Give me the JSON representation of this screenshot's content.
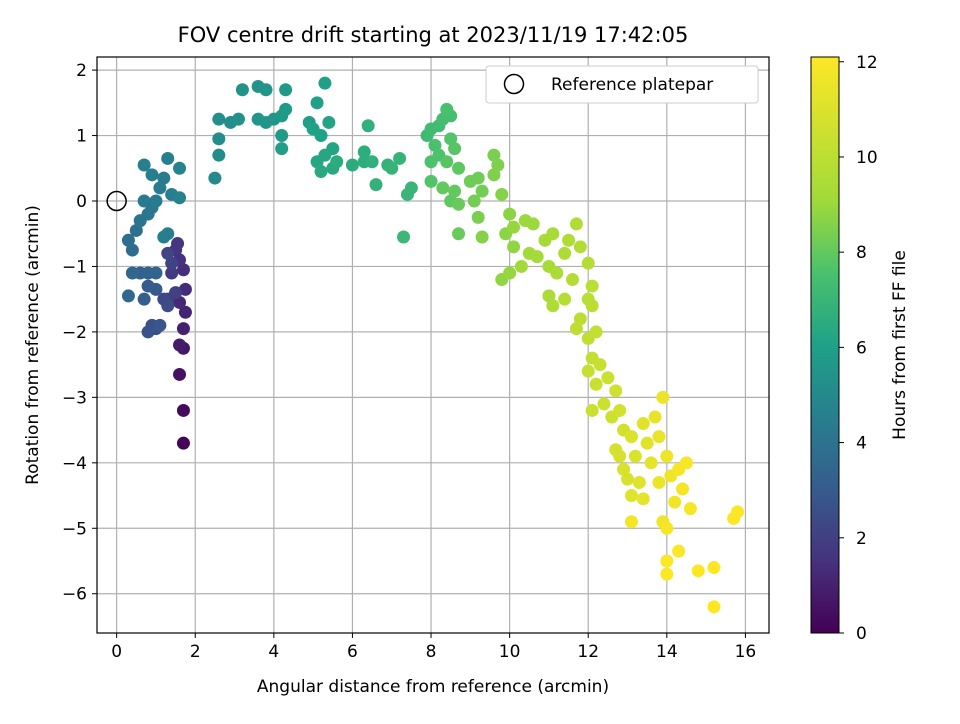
{
  "chart_data": {
    "type": "scatter",
    "title": "FOV centre drift starting at 2023/11/19 17:42:05",
    "xlabel": "Angular distance from reference (arcmin)",
    "ylabel": "Rotation from reference (arcmin)",
    "xlim": [
      -0.5,
      16.6
    ],
    "ylim": [
      -6.6,
      2.2
    ],
    "x_ticks": [
      "0",
      "2",
      "4",
      "6",
      "8",
      "10",
      "12",
      "14",
      "16"
    ],
    "y_ticks": [
      "2",
      "1",
      "0",
      "−1",
      "−2",
      "−3",
      "−4",
      "−5",
      "−6"
    ],
    "grid": true,
    "legend": {
      "position": "top-right",
      "entries": [
        "Reference platepar"
      ]
    },
    "reference_point": {
      "x": 0,
      "y": 0,
      "label": "Reference platepar"
    },
    "colorbar": {
      "label": "Hours from first FF file",
      "range": [
        0,
        12.1
      ],
      "ticks": [
        "0",
        "2",
        "4",
        "6",
        "8",
        "10",
        "12"
      ],
      "colormap": "viridis"
    },
    "series": [
      {
        "points": [
          [
            1.7,
            -3.7,
            0.1
          ],
          [
            1.7,
            -3.2,
            0.3
          ],
          [
            1.6,
            -2.65,
            0.5
          ],
          [
            1.7,
            -2.25,
            0.7
          ],
          [
            1.6,
            -2.2,
            0.8
          ],
          [
            1.7,
            -1.95,
            1.0
          ],
          [
            1.75,
            -1.7,
            1.1
          ],
          [
            1.6,
            -1.55,
            1.2
          ],
          [
            1.75,
            -1.35,
            1.3
          ],
          [
            1.7,
            -1.05,
            1.4
          ],
          [
            1.6,
            -0.9,
            1.5
          ],
          [
            1.5,
            -0.75,
            1.6
          ],
          [
            1.55,
            -0.65,
            1.7
          ],
          [
            1.4,
            -1.1,
            1.8
          ],
          [
            1.3,
            -1.5,
            1.9
          ],
          [
            1.5,
            -1.4,
            2.0
          ],
          [
            1.4,
            -0.95,
            2.1
          ],
          [
            1.3,
            -0.8,
            2.2
          ],
          [
            1.2,
            -1.5,
            2.3
          ],
          [
            1.3,
            -1.6,
            2.4
          ],
          [
            1.0,
            -1.95,
            2.5
          ],
          [
            0.9,
            -1.9,
            2.6
          ],
          [
            0.8,
            -2.0,
            2.7
          ],
          [
            1.1,
            -1.9,
            2.8
          ],
          [
            1.0,
            -1.35,
            2.9
          ],
          [
            0.8,
            -1.3,
            3.0
          ],
          [
            0.7,
            -1.5,
            3.1
          ],
          [
            0.6,
            -1.1,
            3.2
          ],
          [
            0.8,
            -1.1,
            3.3
          ],
          [
            1.0,
            -1.1,
            3.4
          ],
          [
            0.4,
            -1.1,
            3.5
          ],
          [
            0.3,
            -1.45,
            3.6
          ],
          [
            0.4,
            -0.75,
            3.7
          ],
          [
            0.3,
            -0.6,
            3.8
          ],
          [
            0.5,
            -0.45,
            3.9
          ],
          [
            0.6,
            -0.3,
            4.0
          ],
          [
            0.8,
            -0.2,
            4.1
          ],
          [
            0.9,
            -0.1,
            4.2
          ],
          [
            0.7,
            0.0,
            4.3
          ],
          [
            1.0,
            0.0,
            4.3
          ],
          [
            1.1,
            0.2,
            4.4
          ],
          [
            1.2,
            0.35,
            4.4
          ],
          [
            1.4,
            0.1,
            4.5
          ],
          [
            0.9,
            0.4,
            4.5
          ],
          [
            1.3,
            0.65,
            4.6
          ],
          [
            0.7,
            0.55,
            4.6
          ],
          [
            1.6,
            0.5,
            4.7
          ],
          [
            1.6,
            0.05,
            4.7
          ],
          [
            1.2,
            -0.55,
            4.5
          ],
          [
            1.3,
            -0.5,
            4.5
          ],
          [
            2.5,
            0.35,
            5.0
          ],
          [
            2.6,
            0.7,
            5.1
          ],
          [
            2.6,
            0.95,
            5.1
          ],
          [
            2.6,
            1.25,
            5.2
          ],
          [
            2.9,
            1.2,
            5.2
          ],
          [
            3.1,
            1.25,
            5.3
          ],
          [
            3.2,
            1.7,
            5.4
          ],
          [
            3.6,
            1.75,
            5.4
          ],
          [
            3.8,
            1.7,
            5.5
          ],
          [
            3.6,
            1.25,
            5.5
          ],
          [
            3.8,
            1.2,
            5.6
          ],
          [
            4.0,
            1.25,
            5.6
          ],
          [
            4.2,
            1.3,
            5.7
          ],
          [
            4.3,
            1.7,
            5.7
          ],
          [
            4.3,
            1.4,
            5.8
          ],
          [
            4.2,
            1.0,
            5.8
          ],
          [
            4.2,
            0.8,
            5.9
          ],
          [
            4.9,
            1.2,
            5.9
          ],
          [
            5.1,
            1.5,
            6.0
          ],
          [
            5.3,
            1.8,
            6.0
          ],
          [
            5.0,
            1.1,
            6.1
          ],
          [
            5.2,
            1.0,
            6.1
          ],
          [
            5.4,
            1.2,
            6.2
          ],
          [
            5.5,
            0.8,
            6.2
          ],
          [
            5.3,
            0.7,
            6.3
          ],
          [
            5.1,
            0.6,
            6.3
          ],
          [
            5.2,
            0.45,
            6.4
          ],
          [
            5.5,
            0.5,
            6.4
          ],
          [
            5.6,
            0.6,
            6.5
          ],
          [
            6.0,
            0.55,
            6.5
          ],
          [
            6.3,
            0.6,
            6.6
          ],
          [
            6.3,
            0.75,
            6.6
          ],
          [
            6.4,
            1.15,
            6.7
          ],
          [
            6.5,
            0.6,
            6.7
          ],
          [
            6.6,
            0.25,
            6.8
          ],
          [
            6.9,
            0.55,
            6.8
          ],
          [
            7.0,
            0.5,
            6.9
          ],
          [
            7.2,
            0.65,
            6.9
          ],
          [
            7.4,
            0.1,
            7.0
          ],
          [
            7.5,
            0.2,
            7.0
          ],
          [
            7.3,
            -0.55,
            7.1
          ],
          [
            7.9,
            1.0,
            7.2
          ],
          [
            8.0,
            1.1,
            7.3
          ],
          [
            8.2,
            1.15,
            7.3
          ],
          [
            8.3,
            1.25,
            7.4
          ],
          [
            8.5,
            1.3,
            7.4
          ],
          [
            8.4,
            1.4,
            7.5
          ],
          [
            8.1,
            0.85,
            7.5
          ],
          [
            8.0,
            0.6,
            7.6
          ],
          [
            8.2,
            0.7,
            7.6
          ],
          [
            8.0,
            0.3,
            7.7
          ],
          [
            8.5,
            0.95,
            7.7
          ],
          [
            8.6,
            0.8,
            7.8
          ],
          [
            8.4,
            0.6,
            7.8
          ],
          [
            8.7,
            0.5,
            7.9
          ],
          [
            8.5,
            0.0,
            7.9
          ],
          [
            8.6,
            0.15,
            8.0
          ],
          [
            8.3,
            0.2,
            8.0
          ],
          [
            8.7,
            -0.05,
            8.1
          ],
          [
            8.7,
            -0.5,
            8.1
          ],
          [
            9.0,
            0.3,
            8.2
          ],
          [
            9.2,
            0.35,
            8.2
          ],
          [
            9.1,
            0.0,
            8.3
          ],
          [
            9.3,
            0.15,
            8.3
          ],
          [
            9.2,
            -0.25,
            8.4
          ],
          [
            9.6,
            0.7,
            8.4
          ],
          [
            9.7,
            0.55,
            8.5
          ],
          [
            9.6,
            0.4,
            8.5
          ],
          [
            9.3,
            -0.55,
            8.6
          ],
          [
            9.8,
            0.1,
            8.6
          ],
          [
            10.0,
            -0.2,
            8.7
          ],
          [
            9.9,
            -0.5,
            8.7
          ],
          [
            10.1,
            -0.7,
            8.8
          ],
          [
            9.8,
            -1.2,
            8.8
          ],
          [
            10.0,
            -1.1,
            8.9
          ],
          [
            10.1,
            -0.4,
            8.9
          ],
          [
            10.4,
            -0.3,
            9.0
          ],
          [
            10.6,
            -0.35,
            9.0
          ],
          [
            10.5,
            -0.8,
            9.1
          ],
          [
            10.3,
            -1.0,
            9.1
          ],
          [
            10.7,
            -0.85,
            9.2
          ],
          [
            10.9,
            -0.6,
            9.2
          ],
          [
            11.1,
            -0.5,
            9.3
          ],
          [
            11.0,
            -1.0,
            9.3
          ],
          [
            11.2,
            -1.1,
            9.4
          ],
          [
            11.0,
            -1.45,
            9.4
          ],
          [
            11.1,
            -1.6,
            9.5
          ],
          [
            11.4,
            -0.8,
            9.5
          ],
          [
            11.5,
            -0.6,
            9.6
          ],
          [
            11.7,
            -0.35,
            9.6
          ],
          [
            11.8,
            -0.7,
            9.7
          ],
          [
            11.6,
            -1.2,
            9.7
          ],
          [
            11.4,
            -1.5,
            9.8
          ],
          [
            12.0,
            -0.95,
            9.8
          ],
          [
            12.1,
            -1.3,
            9.9
          ],
          [
            12.0,
            -1.5,
            9.9
          ],
          [
            11.8,
            -1.8,
            10.0
          ],
          [
            12.1,
            -1.6,
            10.0
          ],
          [
            11.7,
            -1.95,
            10.1
          ],
          [
            12.0,
            -2.1,
            10.1
          ],
          [
            12.2,
            -2.0,
            10.2
          ],
          [
            12.1,
            -2.4,
            10.2
          ],
          [
            12.3,
            -2.5,
            10.3
          ],
          [
            12.0,
            -2.6,
            10.3
          ],
          [
            12.2,
            -2.8,
            10.4
          ],
          [
            12.1,
            -3.2,
            10.4
          ],
          [
            12.5,
            -2.7,
            10.5
          ],
          [
            12.4,
            -3.1,
            10.5
          ],
          [
            12.6,
            -3.3,
            10.6
          ],
          [
            12.7,
            -2.9,
            10.6
          ],
          [
            12.8,
            -3.2,
            10.7
          ],
          [
            12.9,
            -3.5,
            10.7
          ],
          [
            12.7,
            -3.8,
            10.8
          ],
          [
            12.8,
            -3.9,
            10.8
          ],
          [
            12.9,
            -4.1,
            10.9
          ],
          [
            13.0,
            -4.25,
            10.9
          ],
          [
            13.1,
            -3.6,
            11.0
          ],
          [
            13.2,
            -3.9,
            11.0
          ],
          [
            13.3,
            -4.3,
            11.1
          ],
          [
            13.1,
            -4.5,
            11.1
          ],
          [
            13.4,
            -3.4,
            11.2
          ],
          [
            13.5,
            -3.7,
            11.2
          ],
          [
            13.6,
            -4.0,
            11.3
          ],
          [
            13.4,
            -4.55,
            11.3
          ],
          [
            13.7,
            -3.3,
            11.4
          ],
          [
            13.8,
            -3.6,
            11.4
          ],
          [
            13.9,
            -3.0,
            11.5
          ],
          [
            13.8,
            -4.3,
            11.5
          ],
          [
            14.0,
            -3.9,
            11.6
          ],
          [
            14.1,
            -4.2,
            11.6
          ],
          [
            14.2,
            -4.6,
            11.7
          ],
          [
            13.9,
            -4.9,
            11.7
          ],
          [
            14.3,
            -4.1,
            11.8
          ],
          [
            14.4,
            -4.4,
            11.8
          ],
          [
            14.5,
            -4.0,
            11.9
          ],
          [
            14.6,
            -4.7,
            11.9
          ],
          [
            13.1,
            -4.9,
            11.8
          ],
          [
            14.0,
            -5.0,
            11.9
          ],
          [
            14.3,
            -5.35,
            12.0
          ],
          [
            14.0,
            -5.5,
            12.0
          ],
          [
            14.0,
            -5.7,
            12.0
          ],
          [
            14.8,
            -5.65,
            12.1
          ],
          [
            15.2,
            -5.6,
            12.1
          ],
          [
            15.7,
            -4.85,
            12.1
          ],
          [
            15.8,
            -4.75,
            12.1
          ],
          [
            15.2,
            -6.2,
            12.1
          ]
        ]
      }
    ]
  }
}
